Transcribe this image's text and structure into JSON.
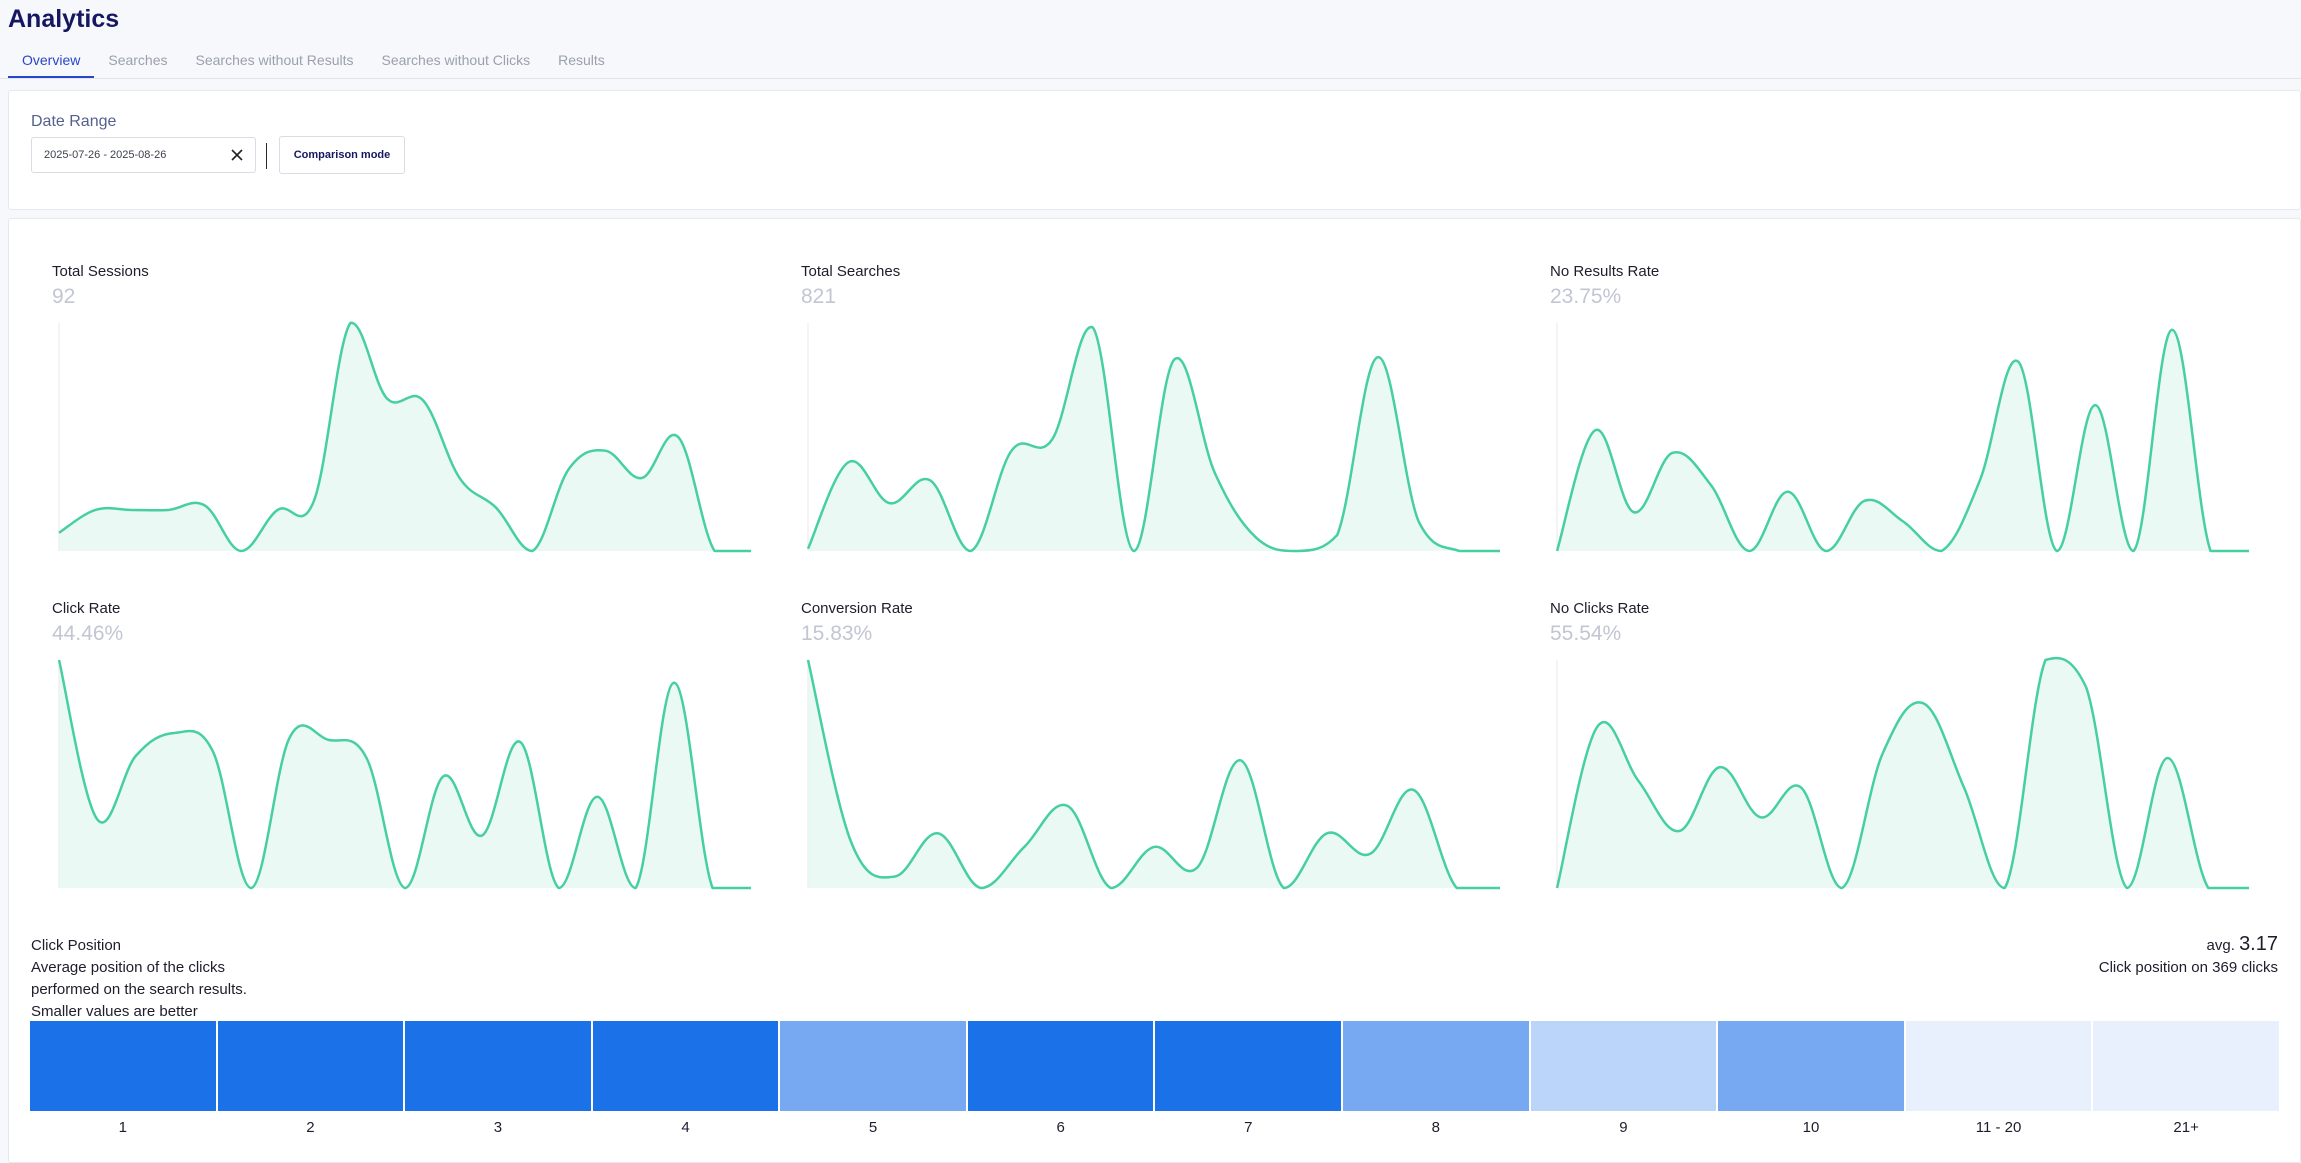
{
  "page": {
    "title": "Analytics"
  },
  "tabs": [
    {
      "label": "Overview",
      "active": true
    },
    {
      "label": "Searches",
      "active": false
    },
    {
      "label": "Searches without Results",
      "active": false
    },
    {
      "label": "Searches without Clicks",
      "active": false
    },
    {
      "label": "Results",
      "active": false
    }
  ],
  "filters": {
    "date_range_label": "Date Range",
    "date_range_value": "2025-07-26 - 2025-08-26",
    "comparison_label": "Comparison mode"
  },
  "colors": {
    "accent": "#2746c8",
    "sparkline": "#46cfa0",
    "sparkline_fill": "#e6f8f1"
  },
  "kpis": [
    {
      "title": "Total Sessions",
      "value": "92",
      "series": [
        0.08,
        0.18,
        0.18,
        0.18,
        0.2,
        0,
        0.18,
        0.22,
        1,
        0.67,
        0.66,
        0.32,
        0.19,
        0,
        0.36,
        0.44,
        0.32,
        0.5,
        0,
        0
      ]
    },
    {
      "title": "Total Searches",
      "value": "821",
      "series": [
        0.01,
        0.39,
        0.21,
        0.31,
        0,
        0.44,
        0.49,
        0.98,
        0,
        0.84,
        0.34,
        0.06,
        0,
        0.07,
        0.85,
        0.13,
        0,
        0
      ]
    },
    {
      "title": "No Results Rate",
      "value": "23.75%",
      "series": [
        0,
        0.53,
        0.17,
        0.43,
        0.29,
        0,
        0.26,
        0,
        0.22,
        0.13,
        0,
        0.31,
        0.83,
        0,
        0.64,
        0,
        0.97,
        0,
        0
      ]
    },
    {
      "title": "Click Rate",
      "value": "44.46%",
      "series": [
        1,
        0.3,
        0.58,
        0.68,
        0.6,
        0,
        0.66,
        0.65,
        0.57,
        0,
        0.49,
        0.23,
        0.64,
        0,
        0.4,
        0,
        0.9,
        0,
        0
      ]
    },
    {
      "title": "Conversion Rate",
      "value": "15.83%",
      "series": [
        1,
        0.2,
        0.05,
        0.24,
        0,
        0.18,
        0.36,
        0,
        0.18,
        0.09,
        0.56,
        0,
        0.24,
        0.15,
        0.43,
        0,
        0
      ]
    },
    {
      "title": "No Clicks Rate",
      "value": "55.54%",
      "series": [
        0,
        0.71,
        0.47,
        0.25,
        0.53,
        0.31,
        0.44,
        0,
        0.59,
        0.81,
        0.44,
        0,
        1,
        0.88,
        0,
        0.57,
        0,
        0
      ]
    }
  ],
  "click_position": {
    "title": "Click Position",
    "description": "Average position of the clicks performed on the search results. Smaller values are better",
    "avg_label": "avg.",
    "avg_value": "3.17",
    "total_text": "Click position on 369 clicks",
    "buckets": [
      {
        "label": "1",
        "color": "#1b72e8"
      },
      {
        "label": "2",
        "color": "#1b72e8"
      },
      {
        "label": "3",
        "color": "#1b72e8"
      },
      {
        "label": "4",
        "color": "#1b72e8"
      },
      {
        "label": "5",
        "color": "#76a9f1"
      },
      {
        "label": "6",
        "color": "#1b72e8"
      },
      {
        "label": "7",
        "color": "#1b72e8"
      },
      {
        "label": "8",
        "color": "#76a9f1"
      },
      {
        "label": "9",
        "color": "#bbd4fa"
      },
      {
        "label": "10",
        "color": "#76a9f1"
      },
      {
        "label": "11 - 20",
        "color": "#e8f0fd"
      },
      {
        "label": "21+",
        "color": "#e8f0fd"
      }
    ]
  }
}
